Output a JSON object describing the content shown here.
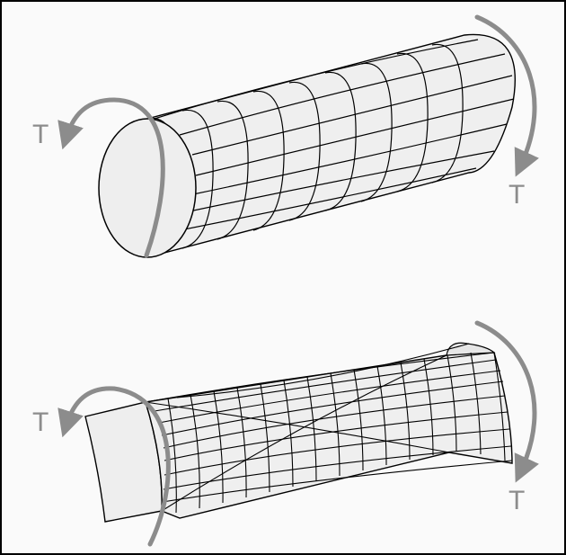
{
  "top_figure": {
    "left_torque_label": "T",
    "right_torque_label": "T"
  },
  "bottom_figure": {
    "left_torque_label": "T",
    "right_torque_label": "T"
  },
  "colors": {
    "background": "#fafafa",
    "border": "#000000",
    "surface_fill": "#efefef",
    "mesh_line": "#000000",
    "torque_arrow": "#8c8c8c"
  }
}
